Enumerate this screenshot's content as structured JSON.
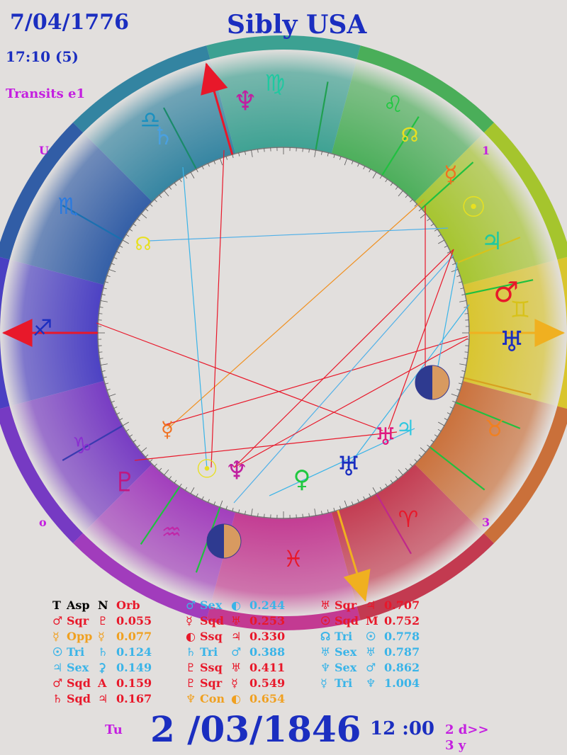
{
  "header": {
    "natal_date": "7/04/1776",
    "natal_time": "17:10 (5)",
    "transit_label": "Transits e1",
    "chart_title": "Sibly USA"
  },
  "houses": {
    "h1": "1",
    "h3": "3",
    "h9": "U",
    "h0": "o"
  },
  "zodiac_signs": [
    "Virgo",
    "Leo",
    "Cancer",
    "Gemini",
    "Taurus",
    "Aries",
    "Pisces",
    "Aquarius",
    "Capricorn",
    "Sagittarius",
    "Scorpio",
    "Libra"
  ],
  "aspects_header": {
    "t": "T",
    "asp": "Asp",
    "n": "N",
    "orb": "Orb"
  },
  "aspects": [
    {
      "t": "♂",
      "asp": "Sqr",
      "n": "♇",
      "orb": "0.055",
      "color": "#e8182a"
    },
    {
      "t": "☿",
      "asp": "Opp",
      "n": "☿",
      "orb": "0.077",
      "color": "#f0a020"
    },
    {
      "t": "☉",
      "asp": "Tri",
      "n": "♄",
      "orb": "0.124",
      "color": "#3ab4e8"
    },
    {
      "t": "♃",
      "asp": "Sex",
      "n": "⚳",
      "orb": "0.149",
      "color": "#3ab4e8"
    },
    {
      "t": "♂",
      "asp": "Sqd",
      "n": "A",
      "orb": "0.159",
      "color": "#e8182a"
    },
    {
      "t": "♄",
      "asp": "Sqd",
      "n": "♃",
      "orb": "0.167",
      "color": "#e8182a"
    },
    {
      "t": "♂",
      "asp": "Sex",
      "n": "◐",
      "orb": "0.244",
      "color": "#3ab4e8"
    },
    {
      "t": "☿",
      "asp": "Sqd",
      "n": "♅",
      "orb": "0.253",
      "color": "#e8182a"
    },
    {
      "t": "◐",
      "asp": "Ssq",
      "n": "♃",
      "orb": "0.330",
      "color": "#e8182a"
    },
    {
      "t": "♄",
      "asp": "Tri",
      "n": "♂",
      "orb": "0.388",
      "color": "#3ab4e8"
    },
    {
      "t": "♇",
      "asp": "Ssq",
      "n": "♅",
      "orb": "0.411",
      "color": "#e8182a"
    },
    {
      "t": "♇",
      "asp": "Sqr",
      "n": "☿",
      "orb": "0.549",
      "color": "#e8182a"
    },
    {
      "t": "♆",
      "asp": "Con",
      "n": "◐",
      "orb": "0.654",
      "color": "#f0a020"
    },
    {
      "t": "♅",
      "asp": "Sqr",
      "n": "♃",
      "orb": "0.707",
      "color": "#e8182a"
    },
    {
      "t": "☉",
      "asp": "Sqd",
      "n": "M",
      "orb": "0.752",
      "color": "#e8182a"
    },
    {
      "t": "☊",
      "asp": "Tri",
      "n": "☉",
      "orb": "0.778",
      "color": "#3ab4e8"
    },
    {
      "t": "♅",
      "asp": "Sex",
      "n": "♅",
      "orb": "0.787",
      "color": "#3ab4e8"
    },
    {
      "t": "♆",
      "asp": "Sex",
      "n": "♂",
      "orb": "0.862",
      "color": "#3ab4e8"
    },
    {
      "t": "☿",
      "asp": "Tri",
      "n": "♆",
      "orb": "1.004",
      "color": "#3ab4e8"
    }
  ],
  "footer": {
    "weekday": "Tu",
    "transit_date": "2 /03/1846",
    "transit_time": "12 :00",
    "step_days": "2 d>>",
    "step_years": "3 y"
  }
}
